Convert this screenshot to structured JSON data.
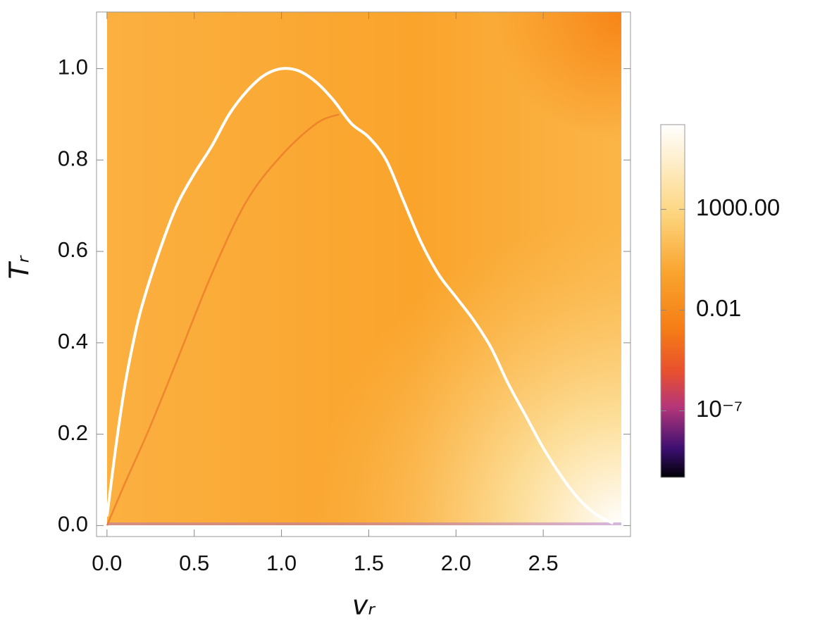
{
  "chart_data": {
    "type": "density",
    "x_label": "vᵣ",
    "y_label": "Tᵣ",
    "xlim": [
      -0.06,
      3.0
    ],
    "ylim": [
      -0.024,
      1.124
    ],
    "xticks": [
      {
        "value": 0,
        "label": "0.0"
      },
      0.5,
      {
        "value": 1,
        "label": "1.0"
      },
      1.5,
      {
        "value": 2,
        "label": "2.0"
      },
      2.5
    ],
    "yticks": [
      {
        "value": 0,
        "label": "0.0"
      },
      0.2,
      0.4,
      0.6,
      0.8,
      {
        "value": 1,
        "label": "1.0"
      }
    ],
    "colorbar": {
      "scale": "log",
      "lim": [
        5e-11,
        16000000.0
      ],
      "ticks": [
        {
          "value": 1000,
          "label": "1000.00"
        },
        0.01,
        {
          "value": 1e-07,
          "label": "10⁻⁷"
        }
      ]
    },
    "curves": [
      {
        "color": "#ffffff",
        "x": [
          0.0,
          0.05,
          0.1,
          0.15,
          0.2,
          0.3,
          0.4,
          0.5,
          0.6,
          0.7,
          0.8,
          0.9,
          1.0,
          1.1,
          1.2,
          1.3,
          1.4,
          1.5,
          1.6,
          1.7,
          1.8,
          1.9,
          2.0,
          2.1,
          2.2,
          2.3,
          2.4,
          2.5,
          2.6,
          2.7,
          2.8,
          2.9
        ],
        "y": [
          0.02,
          0.17,
          0.3,
          0.4,
          0.48,
          0.6,
          0.7,
          0.77,
          0.83,
          0.9,
          0.95,
          0.985,
          1.0,
          0.995,
          0.97,
          0.93,
          0.88,
          0.85,
          0.8,
          0.71,
          0.62,
          0.55,
          0.5,
          0.45,
          0.39,
          0.31,
          0.24,
          0.17,
          0.11,
          0.06,
          0.025,
          0.005
        ]
      },
      {
        "color": "#e8742a",
        "x": [
          0.0,
          0.1,
          0.24,
          0.4,
          0.6,
          0.8,
          1.0,
          1.2,
          1.33
        ],
        "y": [
          0.0,
          0.09,
          0.21,
          0.36,
          0.55,
          0.71,
          0.81,
          0.88,
          0.9
        ]
      }
    ]
  }
}
